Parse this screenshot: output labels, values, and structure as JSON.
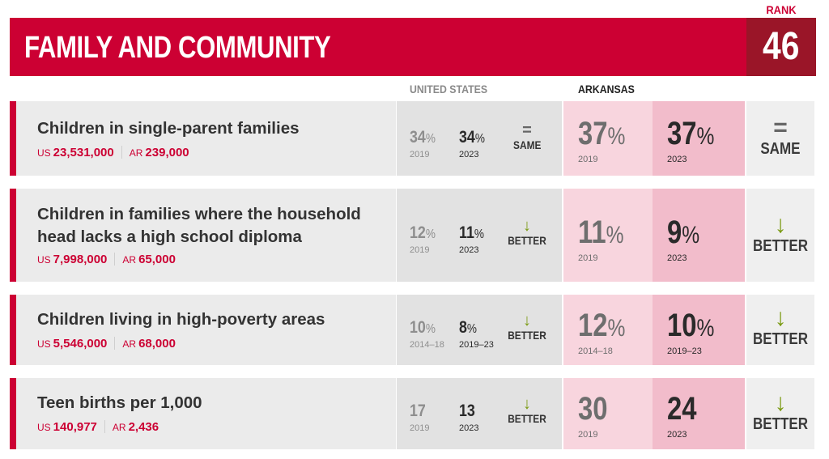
{
  "header": {
    "title": "FAMILY AND COMMUNITY",
    "rank_label": "RANK",
    "rank_value": "46"
  },
  "columns": {
    "us_label": "UNITED STATES",
    "ar_label": "ARKANSAS"
  },
  "colors": {
    "brand_red": "#cc0033",
    "rank_dark_red": "#9a1528",
    "better_green": "#7a9a12",
    "ar_light_pink": "#f8d5de",
    "ar_dark_pink": "#f2bccb"
  },
  "indicators": [
    {
      "title": "Children in single-parent families",
      "us_count_tag": "US",
      "us_count": "23,531,000",
      "ar_count_tag": "AR",
      "ar_count": "239,000",
      "us_old": "34",
      "us_old_unit": "%",
      "us_old_year": "2019",
      "us_new": "34",
      "us_new_unit": "%",
      "us_new_year": "2023",
      "us_trend_icon": "equals-icon",
      "us_trend_glyph": "=",
      "us_trend": "SAME",
      "ar_old": "37",
      "ar_old_unit": "%",
      "ar_old_year": "2019",
      "ar_new": "37",
      "ar_new_unit": "%",
      "ar_new_year": "2023",
      "ar_trend_icon": "equals-icon",
      "ar_trend_glyph": "=",
      "ar_trend": "SAME"
    },
    {
      "title": "Children in families where the household head lacks a high school diploma",
      "us_count_tag": "US",
      "us_count": "7,998,000",
      "ar_count_tag": "AR",
      "ar_count": "65,000",
      "us_old": "12",
      "us_old_unit": "%",
      "us_old_year": "2019",
      "us_new": "11",
      "us_new_unit": "%",
      "us_new_year": "2023",
      "us_trend_icon": "arrow-down-icon",
      "us_trend_glyph": "↓",
      "us_trend": "BETTER",
      "ar_old": "11",
      "ar_old_unit": "%",
      "ar_old_year": "2019",
      "ar_new": "9",
      "ar_new_unit": "%",
      "ar_new_year": "2023",
      "ar_trend_icon": "arrow-down-icon",
      "ar_trend_glyph": "↓",
      "ar_trend": "BETTER"
    },
    {
      "title": "Children living in high-poverty areas",
      "us_count_tag": "US",
      "us_count": "5,546,000",
      "ar_count_tag": "AR",
      "ar_count": "68,000",
      "us_old": "10",
      "us_old_unit": "%",
      "us_old_year": "2014–18",
      "us_new": "8",
      "us_new_unit": "%",
      "us_new_year": "2019–23",
      "us_trend_icon": "arrow-down-icon",
      "us_trend_glyph": "↓",
      "us_trend": "BETTER",
      "ar_old": "12",
      "ar_old_unit": "%",
      "ar_old_year": "2014–18",
      "ar_new": "10",
      "ar_new_unit": "%",
      "ar_new_year": "2019–23",
      "ar_trend_icon": "arrow-down-icon",
      "ar_trend_glyph": "↓",
      "ar_trend": "BETTER"
    },
    {
      "title": "Teen births per 1,000",
      "us_count_tag": "US",
      "us_count": "140,977",
      "ar_count_tag": "AR",
      "ar_count": "2,436",
      "us_old": "17",
      "us_old_unit": "",
      "us_old_year": "2019",
      "us_new": "13",
      "us_new_unit": "",
      "us_new_year": "2023",
      "us_trend_icon": "arrow-down-icon",
      "us_trend_glyph": "↓",
      "us_trend": "BETTER",
      "ar_old": "30",
      "ar_old_unit": "",
      "ar_old_year": "2019",
      "ar_new": "24",
      "ar_new_unit": "",
      "ar_new_year": "2023",
      "ar_trend_icon": "arrow-down-icon",
      "ar_trend_glyph": "↓",
      "ar_trend": "BETTER"
    }
  ]
}
